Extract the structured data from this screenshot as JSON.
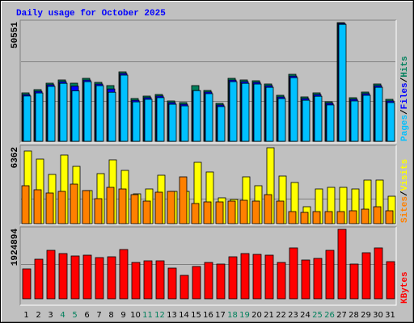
{
  "chart_data": {
    "type": "bar",
    "title": "Daily usage for October 2025",
    "categories": [
      "1",
      "2",
      "3",
      "4",
      "5",
      "6",
      "7",
      "8",
      "9",
      "10",
      "11",
      "12",
      "13",
      "14",
      "15",
      "16",
      "17",
      "18",
      "19",
      "20",
      "21",
      "22",
      "23",
      "24",
      "25",
      "26",
      "27",
      "28",
      "29",
      "30",
      "31"
    ],
    "highlight": {
      "color": "#00805c",
      "categories": [
        "4",
        "5",
        "11",
        "12",
        "18",
        "19",
        "25",
        "26"
      ]
    },
    "legend_separator": "/",
    "panels": [
      {
        "ylim": [
          0,
          50551
        ],
        "yticks": [
          50551
        ],
        "series": [
          {
            "name": "Hits",
            "color": "#00805c",
            "values": [
              20634,
              22010,
              24761,
              26136,
              24761,
              26824,
              25105,
              23729,
              29575,
              18227,
              19258,
              19946,
              17195,
              16507,
              23729,
              21665,
              16163,
              26824,
              26136,
              25793,
              24417,
              19602,
              28543,
              18914,
              20634,
              16851,
              50551,
              18570,
              20978,
              24417,
              17882
            ]
          },
          {
            "name": "Files",
            "color": "#0000ff",
            "values": [
              19900,
              21300,
              24100,
              25400,
              23500,
              26100,
              24400,
              22300,
              28900,
              17500,
              18600,
              19300,
              16500,
              15800,
              21600,
              21000,
              15500,
              26100,
              25400,
              25100,
              23700,
              18900,
              27800,
              18200,
              19900,
              16200,
              50200,
              17900,
              20300,
              23700,
              17200
            ]
          },
          {
            "name": "Pages",
            "color": "#00c0ff",
            "values": [
              19300,
              20600,
              23400,
              24700,
              21500,
              25400,
              23700,
              20900,
              28200,
              16800,
              17900,
              18600,
              15800,
              15100,
              21600,
              20300,
              14800,
              25400,
              24700,
              24400,
              23000,
              18200,
              27100,
              17500,
              19200,
              15500,
              49800,
              17200,
              19600,
              23000,
              16500
            ]
          }
        ]
      },
      {
        "ylim": [
          0,
          6362
        ],
        "yticks": [
          6362
        ],
        "series": [
          {
            "name": "Visits",
            "color": "#ffff00",
            "values": [
              6091,
              5414,
              4128,
              5753,
              4805,
              2775,
              4196,
              5347,
              4467,
              2504,
              2910,
              4061,
              2707,
              2707,
              5144,
              4332,
              2166,
              2030,
              3925,
              3181,
              6362,
              3993,
              3452,
              1421,
              2910,
              3046,
              3046,
              2910,
              3655,
              3655,
              2301
            ]
          },
          {
            "name": "Sites",
            "color": "#ff8000",
            "values": [
              3181,
              2843,
              2572,
              2707,
              3316,
              2775,
              2098,
              3046,
              2910,
              2436,
              1895,
              2640,
              2707,
              3925,
              1692,
              1827,
              1827,
              1895,
              1963,
              1895,
              2436,
              1895,
              1015,
              948,
              1015,
              1015,
              1015,
              1083,
              1218,
              1421,
              1083
            ]
          }
        ]
      },
      {
        "ylim": [
          0,
          1924894
        ],
        "yticks": [
          1924894
        ],
        "series": [
          {
            "name": "KBytes",
            "color": "#ff0000",
            "values": [
              828171,
              1096767,
              1342980,
              1253448,
              1186299,
              1208682,
              1141533,
              1163916,
              1365363,
              1007235,
              1052001,
              1052001,
              850554,
              649107,
              895320,
              1007235,
              962469,
              1163916,
              1253448,
              1231065,
              1208682,
              1007235,
              1410129,
              1074384,
              1119150,
              1342980,
              1924894,
              962469,
              1275831,
              1410129,
              1029618
            ]
          }
        ]
      }
    ]
  }
}
